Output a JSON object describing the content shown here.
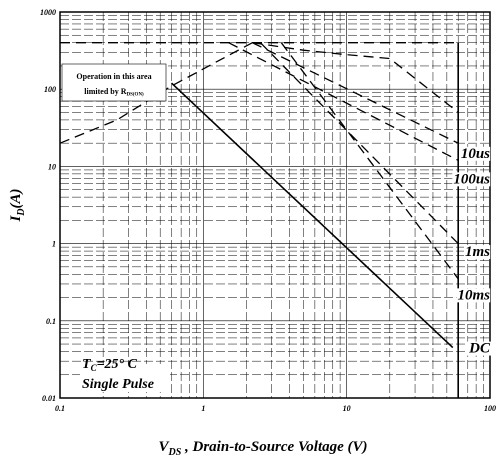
{
  "chart_data": {
    "type": "line",
    "scale": "log-log",
    "grid": true,
    "xlabel": {
      "main": "V",
      "sub": "DS",
      "rest": " , Drain-to-Source Voltage (V)"
    },
    "ylabel": {
      "main": "I",
      "sub": "D",
      "rest": "(A)"
    },
    "xlim": [
      0.1,
      100
    ],
    "ylim": [
      0.01,
      1000
    ],
    "x_ticks": [
      {
        "value": 0.1,
        "label": "0.1"
      },
      {
        "value": 1,
        "label": "1"
      },
      {
        "value": 10,
        "label": "10"
      },
      {
        "value": 100,
        "label": "100"
      }
    ],
    "y_ticks": [
      {
        "value": 1000,
        "label": "1000"
      },
      {
        "value": 100,
        "label": "100"
      },
      {
        "value": 10,
        "label": "10"
      },
      {
        "value": 1,
        "label": "1"
      },
      {
        "value": 0.1,
        "label": "0.1"
      },
      {
        "value": 0.01,
        "label": "0.01"
      }
    ],
    "series": [
      {
        "name": "",
        "style": "dashed",
        "points": [
          [
            0.1,
            20
          ],
          [
            0.25,
            40
          ],
          [
            0.6,
            110
          ],
          [
            1.2,
            220
          ],
          [
            2.2,
            400
          ]
        ]
      },
      {
        "name": "",
        "style": "dashed",
        "points": [
          [
            2.2,
            400
          ],
          [
            5,
            320
          ],
          [
            10,
            280
          ],
          [
            20,
            250
          ],
          [
            60,
            50
          ]
        ]
      },
      {
        "name": "10us",
        "style": "dashed",
        "points": [
          [
            2.2,
            400
          ],
          [
            60,
            20
          ]
        ]
      },
      {
        "name": "100us",
        "style": "dashed",
        "points": [
          [
            1.5,
            400
          ],
          [
            60,
            12
          ]
        ]
      },
      {
        "name": "1ms",
        "style": "dashed",
        "points": [
          [
            2.5,
            400
          ],
          [
            60,
            1
          ]
        ]
      },
      {
        "name": "10ms",
        "style": "dashed",
        "points": [
          [
            3.5,
            400
          ],
          [
            60,
            0.35
          ]
        ]
      },
      {
        "name": "DC",
        "style": "solid",
        "points": [
          [
            0.6,
            120
          ],
          [
            55,
            0.045
          ]
        ]
      },
      {
        "name": "",
        "style": "dashed",
        "points": [
          [
            0.1,
            400
          ],
          [
            60,
            400
          ]
        ]
      },
      {
        "name": "",
        "style": "solid",
        "points": [
          [
            60,
            400
          ],
          [
            60,
            0.01
          ]
        ]
      }
    ],
    "curve_labels": [
      {
        "text": "10us",
        "x": 62,
        "y": 15
      },
      {
        "text": "100us",
        "x": 62,
        "y": 7
      },
      {
        "text": "1ms",
        "x": 62,
        "y": 0.8
      },
      {
        "text": "10ms",
        "x": 62,
        "y": 0.22
      },
      {
        "text": "DC",
        "x": 62,
        "y": 0.045
      }
    ],
    "annotations": {
      "region_line1": "Operation in this area",
      "region_line2_main": "limited by R",
      "region_line2_sub": "DS(ON)",
      "condition_main": "T",
      "condition_sub": "C",
      "condition_rest": "=25° C",
      "condition_line2": "Single Pulse"
    }
  }
}
